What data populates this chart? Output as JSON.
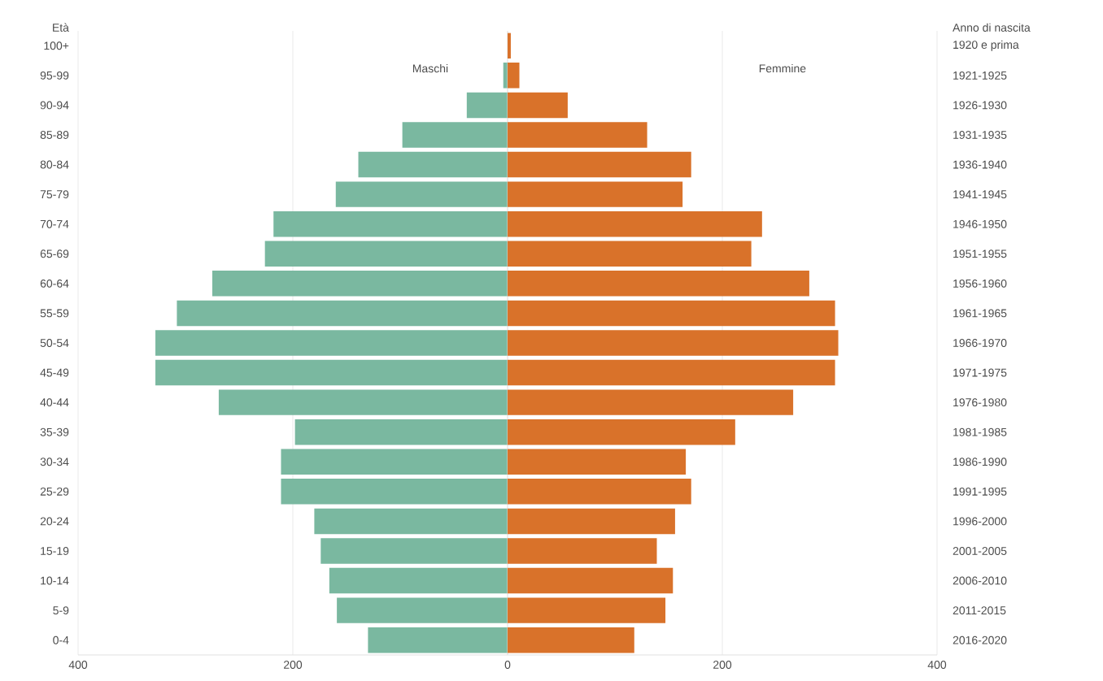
{
  "chart_data": [
    {
      "type": "bar",
      "orientation": "horizontal",
      "ylabel": "Età",
      "categories": [
        "100+",
        "95-99",
        "90-94",
        "85-89",
        "80-84",
        "75-79",
        "70-74",
        "65-69",
        "60-64",
        "55-59",
        "50-54",
        "45-49",
        "40-44",
        "35-39",
        "30-34",
        "25-29",
        "20-24",
        "15-19",
        "10-14",
        "5-9",
        "0-4"
      ],
      "series": [
        {
          "name": "Maschi",
          "color": "#7ab8a0",
          "values": [
            null,
            4,
            38,
            98,
            139,
            160,
            218,
            226,
            275,
            308,
            328,
            328,
            269,
            198,
            211,
            211,
            180,
            174,
            166,
            159,
            130
          ]
        }
      ],
      "xlim": [
        400,
        0
      ],
      "xticks": [
        400,
        200,
        {
          "value": 0,
          "label": null
        }
      ],
      "grid": "x"
    },
    {
      "type": "bar",
      "orientation": "horizontal",
      "ylabel": "Anno di nascita",
      "categories": [
        "1920 e prima",
        "1921-1925",
        "1926-1930",
        "1931-1935",
        "1936-1940",
        "1941-1945",
        "1946-1950",
        "1951-1955",
        "1956-1960",
        "1961-1965",
        "1966-1970",
        "1971-1975",
        "1976-1980",
        "1981-1985",
        "1986-1990",
        "1991-1995",
        "1996-2000",
        "2001-2005",
        "2006-2010",
        "2011-2015",
        "2016-2020"
      ],
      "series": [
        {
          "name": "Femmine",
          "color": "#d9722a",
          "values": [
            3,
            11,
            56,
            130,
            171,
            163,
            237,
            227,
            281,
            305,
            308,
            305,
            266,
            212,
            166,
            171,
            156,
            139,
            154,
            147,
            118
          ]
        }
      ],
      "xlim": [
        0,
        400
      ],
      "xticks": [
        0,
        200,
        400
      ],
      "grid": "x"
    }
  ]
}
